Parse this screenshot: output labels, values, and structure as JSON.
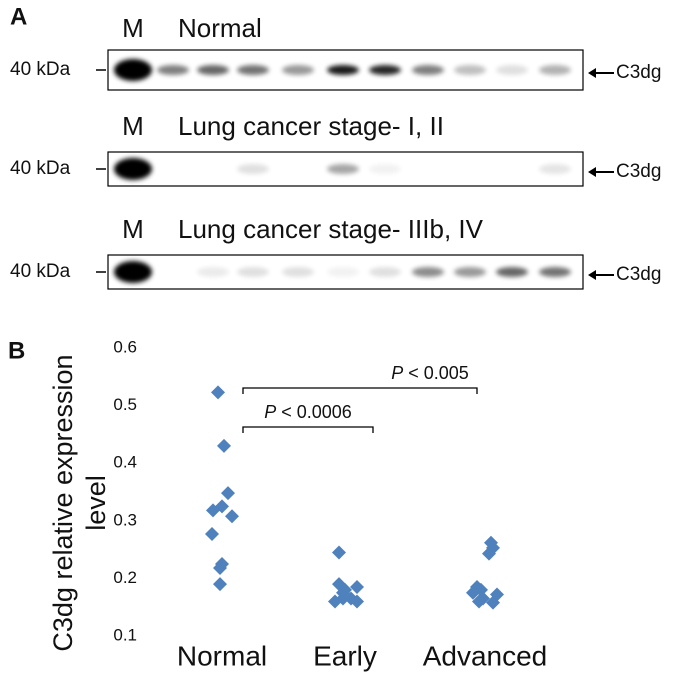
{
  "panel_a": {
    "label": "A",
    "blots": [
      {
        "marker": "M",
        "title": "Normal",
        "size": "40 kDa",
        "band": "C3dg"
      },
      {
        "marker": "M",
        "title": "Lung cancer stage- I, II",
        "size": "40 kDa",
        "band": "C3dg"
      },
      {
        "marker": "M",
        "title": "Lung cancer stage- IIIb, IV",
        "size": "40 kDa",
        "band": "C3dg"
      }
    ]
  },
  "chart_data": {
    "type": "strip",
    "label": "B",
    "ylabel": "C3dg relative expression level",
    "categories": [
      "Normal",
      "Early",
      "Advanced"
    ],
    "values": [
      [
        0.523,
        0.43,
        0.348,
        0.325,
        0.318,
        0.308,
        0.277,
        0.225,
        0.218,
        0.19
      ],
      [
        0.245,
        0.19,
        0.185,
        0.18,
        0.175,
        0.165,
        0.165,
        0.16,
        0.16
      ],
      [
        0.262,
        0.253,
        0.243,
        0.185,
        0.18,
        0.175,
        0.172,
        0.165,
        0.16,
        0.158
      ]
    ],
    "color": "#4f81bd",
    "ylim": [
      0.1,
      0.6
    ],
    "yticks": [
      0.1,
      0.2,
      0.3,
      0.4,
      0.5,
      0.6
    ],
    "annotations": [
      "P < 0.0006",
      "P < 0.005"
    ]
  }
}
